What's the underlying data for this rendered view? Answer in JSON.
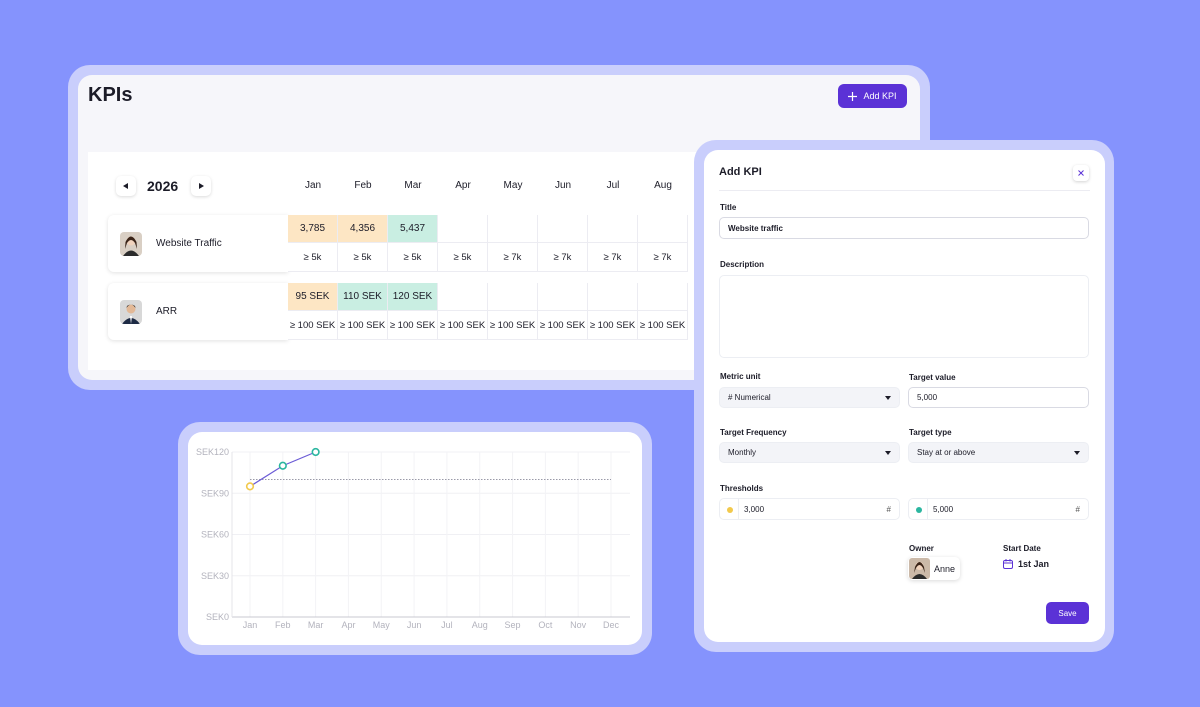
{
  "kpis_panel": {
    "title": "KPIs",
    "add_button": "Add KPI",
    "year": "2026",
    "months": [
      "Jan",
      "Feb",
      "Mar",
      "Apr",
      "May",
      "Jun",
      "Jul",
      "Aug"
    ],
    "rows": [
      {
        "name": "Website Traffic",
        "actuals": [
          "3,785",
          "4,356",
          "5,437"
        ],
        "actual_colors": [
          "#fde6c4",
          "#fde6c4",
          "#c9eee2"
        ],
        "targets": [
          "≥ 5k",
          "≥ 5k",
          "≥ 5k",
          "≥ 5k",
          "≥ 7k",
          "≥ 7k",
          "≥ 7k",
          "≥ 7k"
        ]
      },
      {
        "name": "ARR",
        "actuals": [
          "95 SEK",
          "110 SEK",
          "120 SEK"
        ],
        "actual_colors": [
          "#fde6c4",
          "#c9eee2",
          "#c9eee2"
        ],
        "targets": [
          "≥ 100 SEK",
          "≥ 100 SEK",
          "≥ 100 SEK",
          "≥ 100 SEK",
          "≥ 100 SEK",
          "≥ 100 SEK",
          "≥ 100 SEK",
          "≥ 100 SEK"
        ]
      }
    ]
  },
  "chart_data": {
    "type": "line",
    "categories": [
      "Jan",
      "Feb",
      "Mar",
      "Apr",
      "May",
      "Jun",
      "Jul",
      "Aug",
      "Sep",
      "Oct",
      "Nov",
      "Dec"
    ],
    "series": [
      {
        "color": "#6b5bd6",
        "values": [
          95,
          110,
          120,
          null,
          null,
          null,
          null,
          null,
          null,
          null,
          null,
          null
        ]
      }
    ],
    "target": 100,
    "below_color": "#f2c94c",
    "above_color": "#2bb6a0",
    "ylim": [
      0,
      120
    ],
    "yticks": [
      {
        "value": 0,
        "label": "SEK0"
      },
      {
        "value": 30,
        "label": "SEK30"
      },
      {
        "value": 60,
        "label": "SEK60"
      },
      {
        "value": 90,
        "label": "SEK90"
      },
      {
        "value": 120,
        "label": "SEK120"
      }
    ],
    "grid": true
  },
  "add_kpi_form": {
    "title": "Add KPI",
    "title_label": "Title",
    "title_value": "Website traffic",
    "description_label": "Description",
    "metric_unit_label": "Metric unit",
    "metric_unit_value": "# Numerical",
    "target_value_label": "Target value",
    "target_value": "5,000",
    "frequency_label": "Target Frequency",
    "frequency_value": "Monthly",
    "target_type_label": "Target type",
    "target_type_value": "Stay at or above",
    "thresholds_label": "Thresholds",
    "thresholds": [
      {
        "value": "3,000",
        "unit": "#"
      },
      {
        "value": "5,000",
        "unit": "#"
      }
    ],
    "owner_label": "Owner",
    "owner_name": "Anne",
    "start_date_label": "Start Date",
    "start_date": "1st Jan",
    "save_button": "Save"
  }
}
